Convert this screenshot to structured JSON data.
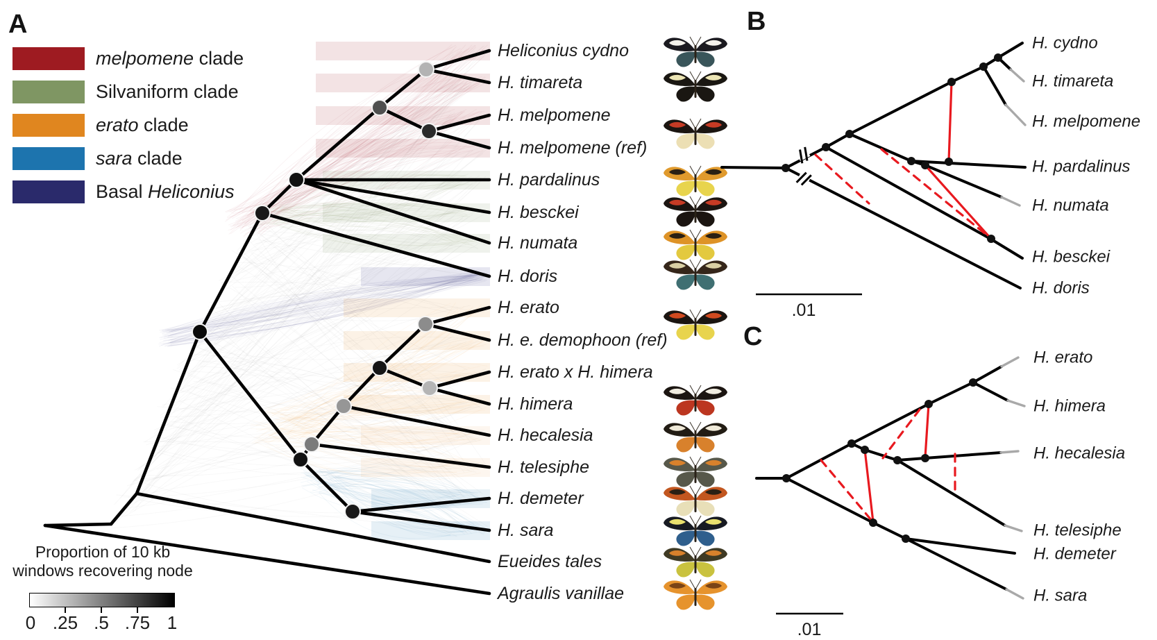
{
  "panels": {
    "a_label": "A",
    "b_label": "B",
    "c_label": "C"
  },
  "clades": {
    "melpomene": "#9e1b21",
    "silvaniform": "#7f9663",
    "erato": "#e0861f",
    "sara": "#1d74ae",
    "basal": "#2a2a6b"
  },
  "legend": {
    "items": [
      {
        "id": "melpomene-clade",
        "color_key": "melpomene",
        "parts": [
          {
            "text": "melpomene",
            "italic": true
          },
          {
            "text": " clade",
            "italic": false
          }
        ]
      },
      {
        "id": "silvaniform-clade",
        "color_key": "silvaniform",
        "parts": [
          {
            "text": "Silvaniform clade",
            "italic": false
          }
        ]
      },
      {
        "id": "erato-clade",
        "color_key": "erato",
        "parts": [
          {
            "text": "erato",
            "italic": true
          },
          {
            "text": " clade",
            "italic": false
          }
        ]
      },
      {
        "id": "sara-clade",
        "color_key": "sara",
        "parts": [
          {
            "text": "sara",
            "italic": true
          },
          {
            "text": " clade",
            "italic": false
          }
        ]
      },
      {
        "id": "basal-heliconius",
        "color_key": "basal",
        "parts": [
          {
            "text": "Basal ",
            "italic": false
          },
          {
            "text": "Heliconius",
            "italic": true
          }
        ]
      }
    ]
  },
  "colorbar": {
    "title_line1": "Proportion of 10 kb",
    "title_line2": "windows recovering node",
    "ticks": [
      "0",
      ".25",
      ".5",
      ".75",
      "1"
    ],
    "gradient_from": "#ffffff",
    "gradient_to": "#000000"
  },
  "panel_a": {
    "tips": [
      {
        "label": "Heliconius cydno",
        "clade": "melpomene"
      },
      {
        "label": "H. timareta",
        "clade": "melpomene"
      },
      {
        "label": "H. melpomene",
        "clade": "melpomene"
      },
      {
        "label": "H. melpomene (ref)",
        "clade": "melpomene"
      },
      {
        "label": "H. pardalinus",
        "clade": "silvaniform"
      },
      {
        "label": "H. besckei",
        "clade": "silvaniform"
      },
      {
        "label": "H. numata",
        "clade": "silvaniform"
      },
      {
        "label": "H. doris",
        "clade": "basal"
      },
      {
        "label": "H. erato",
        "clade": "erato"
      },
      {
        "label": "H. e. demophoon (ref)",
        "clade": "erato"
      },
      {
        "label": "H. erato x H. himera",
        "clade": "erato"
      },
      {
        "label": "H. himera",
        "clade": "erato"
      },
      {
        "label": "H. hecalesia",
        "clade": "erato"
      },
      {
        "label": "H. telesiphe",
        "clade": "erato"
      },
      {
        "label": "H. demeter",
        "clade": "sara"
      },
      {
        "label": "H. sara",
        "clade": "sara"
      },
      {
        "label": "Eueides tales",
        "clade": "outgroup"
      },
      {
        "label": "Agraulis vanillae",
        "clade": "outgroup"
      }
    ],
    "node_support_shades": {
      "cydno-timareta": "#b3b3b3",
      "melpomene-clade-stem": "#4f4f4f",
      "melpomene-ref": "#2b2b2b",
      "silvaniform-melpomene": "#111111",
      "doris-ancestor": "#181818",
      "heliconius-crown": "#0a0a0a",
      "erato-demophoon": "#8c8c8c",
      "erato-group": "#161616",
      "hybrid-himera": "#b5b5b5",
      "hecalesia-ancestor": "#969696",
      "telesiphe-ancestor": "#7b7b7b",
      "erato-sara-split": "#121212",
      "demeter-sara": "#191919"
    }
  },
  "panel_b": {
    "tips": [
      {
        "label": "H. cydno",
        "gray_tip": false
      },
      {
        "label": "H. timareta",
        "gray_tip": true
      },
      {
        "label": "H. melpomene",
        "gray_tip": true
      },
      {
        "label": "H. pardalinus",
        "gray_tip": false
      },
      {
        "label": "H. numata",
        "gray_tip": true
      },
      {
        "label": "H. besckei",
        "gray_tip": false
      },
      {
        "label": "H. doris",
        "gray_tip": false
      }
    ],
    "scale_label": ".01",
    "introgression": {
      "solid_edges": 2,
      "dashed_edges": 2
    }
  },
  "panel_c": {
    "tips": [
      {
        "label": "H. erato",
        "gray_tip": true
      },
      {
        "label": "H. himera",
        "gray_tip": true
      },
      {
        "label": "H. hecalesia",
        "gray_tip": true
      },
      {
        "label": "H. telesiphe",
        "gray_tip": true
      },
      {
        "label": "H. demeter",
        "gray_tip": false
      },
      {
        "label": "H. sara",
        "gray_tip": true
      }
    ],
    "scale_label": ".01",
    "introgression": {
      "solid_edges": 2,
      "dashed_edges": 3
    }
  },
  "butterflies": [
    {
      "species": "Heliconius cydno",
      "base": "#1b1a20",
      "fw": "#f4f2ec",
      "hw": "#39555a"
    },
    {
      "species": "H. timareta",
      "base": "#1a1712",
      "fw": "#ece5b4",
      "hw": ""
    },
    {
      "species": "H. melpomene",
      "base": "#1b1511",
      "fw": "#c63b25",
      "hw": "#ecdfb4"
    },
    {
      "species": "H. pardalinus",
      "base": "#e09a2d",
      "fw": "#2a2014",
      "hw": "#e8d44d"
    },
    {
      "species": "H. besckei",
      "base": "#1b1511",
      "fw": "#c63b25",
      "hw": ""
    },
    {
      "species": "H. numata",
      "base": "#de9327",
      "fw": "#2a2014",
      "hw": "#e3c93f"
    },
    {
      "species": "H. doris",
      "base": "#35261a",
      "fw": "#d9cfa4",
      "hw": "#3f6f72"
    },
    {
      "species": "H. erato demophoon",
      "base": "#1b1511",
      "fw": "#d04a20",
      "hw": "#e8d44d"
    },
    {
      "species": "H. himera",
      "base": "#1b1511",
      "fw": "#f0ece0",
      "hw": "#bc3620"
    },
    {
      "species": "H. hecalesia",
      "base": "#221c14",
      "fw": "#efe9d8",
      "hw": "#d8812c"
    },
    {
      "species": "H. telesiphe",
      "base": "#57584a",
      "fw": "#d8812c",
      "hw": ""
    },
    {
      "species": "H. demeter",
      "base": "#c2561f",
      "fw": "#2a2014",
      "hw": "#e8dfb8"
    },
    {
      "species": "H. sara",
      "base": "#171a22",
      "fw": "#e9e06e",
      "hw": "#2f5f8d"
    },
    {
      "species": "Eueides tales",
      "base": "#3f3a24",
      "fw": "#d8812c",
      "hw": "#c9c23f"
    },
    {
      "species": "Agraulis vanillae",
      "base": "#e6932d",
      "fw": "#7a4416",
      "hw": ""
    }
  ],
  "introgression_color": "#e8191f"
}
